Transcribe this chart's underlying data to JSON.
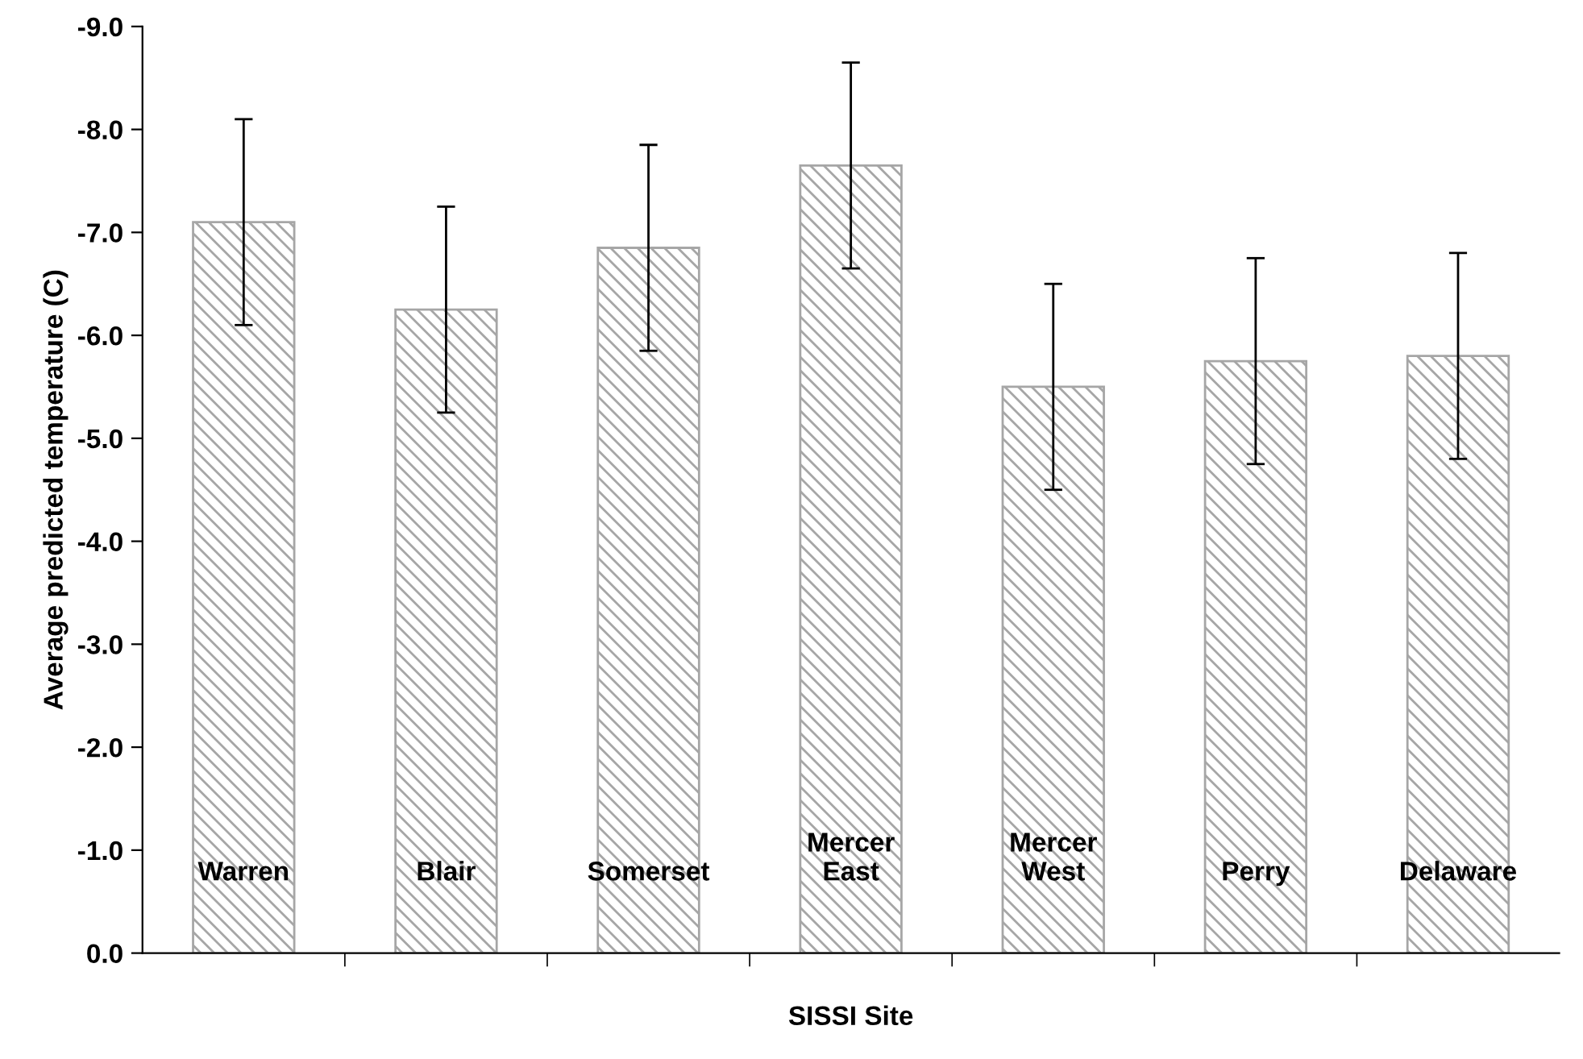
{
  "chart_data": {
    "type": "bar",
    "xlabel": "SISSI Site",
    "ylabel": "Average predicted temperature (C)",
    "categories": [
      "Warren",
      "Blair",
      "Somerset",
      "Mercer\nEast",
      "Mercer\nWest",
      "Perry",
      "Delaware"
    ],
    "values": [
      -7.1,
      -6.25,
      -6.85,
      -7.65,
      -5.5,
      -5.75,
      -5.8
    ],
    "errors": [
      1.0,
      1.0,
      1.0,
      1.0,
      1.0,
      1.0,
      1.0
    ],
    "color": "#a6a6a6",
    "ylim": [
      0,
      -9
    ],
    "yticks": [
      {
        "value": 0,
        "label": "0.0"
      },
      {
        "value": -1,
        "label": "-1.0"
      },
      {
        "value": -2,
        "label": "-2.0"
      },
      {
        "value": -3,
        "label": "-3.0"
      },
      {
        "value": -4,
        "label": "-4.0"
      },
      {
        "value": -5,
        "label": "-5.0"
      },
      {
        "value": -6,
        "label": "-6.0"
      },
      {
        "value": -7,
        "label": "-7.0"
      },
      {
        "value": -8,
        "label": "-8.0"
      },
      {
        "value": -9,
        "label": "-9.0"
      }
    ],
    "grid": false
  }
}
